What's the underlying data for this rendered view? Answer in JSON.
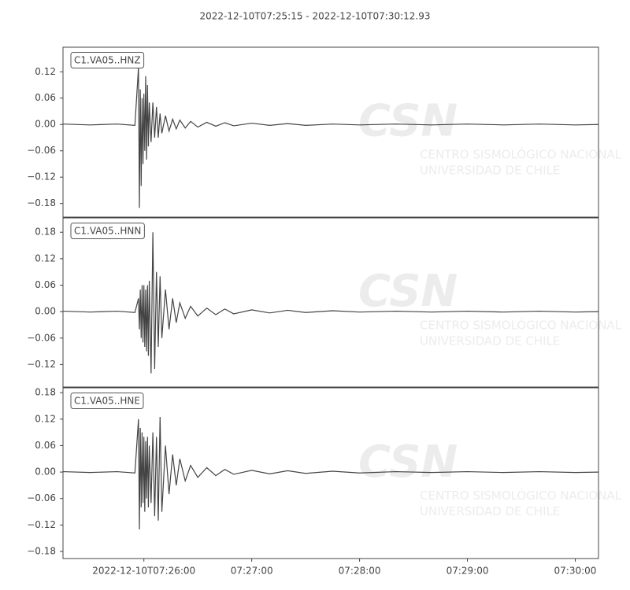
{
  "title": "2022-12-10T07:25:15  -  2022-12-10T07:30:12.93",
  "watermark": {
    "logo": "CSN",
    "lines": [
      "CENTRO SISMOLÓGICO NACIONAL",
      "UNIVERSIDAD DE CHILE"
    ]
  },
  "chart_data": [
    {
      "type": "line",
      "label": "C1.VA05..HNZ",
      "color": "#444444",
      "xlim": [
        "07:25:15",
        "07:30:12.93"
      ],
      "ylim": [
        -0.211,
        0.176
      ],
      "yticks": [
        {
          "value": 0.12,
          "label": "0.12"
        },
        {
          "value": 0.06,
          "label": "0.06"
        },
        {
          "value": 0,
          "label": "0.00"
        },
        {
          "value": -0.06,
          "label": "−0.06"
        },
        {
          "value": -0.12,
          "label": "−0.12"
        },
        {
          "value": -0.18,
          "label": "−0.18"
        }
      ],
      "x": [
        "07:25:15",
        "07:25:30",
        "07:25:45",
        "07:25:55",
        "07:25:57",
        "07:25:57.5",
        "07:25:58",
        "07:25:58.5",
        "07:25:59",
        "07:25:59.5",
        "07:26:00",
        "07:26:00.5",
        "07:26:01",
        "07:26:01.5",
        "07:26:02",
        "07:26:02.5",
        "07:26:03",
        "07:26:04",
        "07:26:05",
        "07:26:06",
        "07:26:07",
        "07:26:08",
        "07:26:09",
        "07:26:10",
        "07:26:12",
        "07:26:14",
        "07:26:16",
        "07:26:18",
        "07:26:20",
        "07:26:23",
        "07:26:26",
        "07:26:30",
        "07:26:35",
        "07:26:40",
        "07:26:45",
        "07:26:50",
        "07:27:00",
        "07:27:10",
        "07:27:20",
        "07:27:30",
        "07:27:45",
        "07:28:00",
        "07:28:20",
        "07:28:40",
        "07:29:00",
        "07:29:20",
        "07:29:40",
        "07:30:00",
        "07:30:12.9"
      ],
      "values": [
        0.001,
        -0.001,
        0.001,
        -0.002,
        0.13,
        -0.19,
        0.08,
        -0.14,
        0.06,
        -0.09,
        0.07,
        -0.06,
        0.11,
        -0.08,
        0.09,
        -0.05,
        0.05,
        -0.04,
        0.05,
        -0.03,
        0.04,
        -0.03,
        0.025,
        -0.02,
        0.02,
        -0.015,
        0.012,
        -0.01,
        0.01,
        -0.008,
        0.007,
        -0.006,
        0.005,
        -0.004,
        0.004,
        -0.003,
        0.003,
        -0.002,
        0.002,
        -0.002,
        0.001,
        -0.001,
        0.001,
        -0.001,
        0.001,
        -0.001,
        0.001,
        -0.001,
        0
      ]
    },
    {
      "type": "line",
      "label": "C1.VA05..HNN",
      "color": "#444444",
      "xlim": [
        "07:25:15",
        "07:30:12.93"
      ],
      "ylim": [
        -0.171,
        0.2125
      ],
      "yticks": [
        {
          "value": 0.18,
          "label": "0.18"
        },
        {
          "value": 0.12,
          "label": "0.12"
        },
        {
          "value": 0.06,
          "label": "0.06"
        },
        {
          "value": 0,
          "label": "0.00"
        },
        {
          "value": -0.06,
          "label": "−0.06"
        },
        {
          "value": -0.12,
          "label": "−0.12"
        }
      ],
      "x": [
        "07:25:15",
        "07:25:30",
        "07:25:45",
        "07:25:55",
        "07:25:57",
        "07:25:57.5",
        "07:25:58",
        "07:25:58.5",
        "07:25:59",
        "07:25:59.5",
        "07:26:00",
        "07:26:00.5",
        "07:26:01",
        "07:26:01.5",
        "07:26:02",
        "07:26:02.5",
        "07:26:03",
        "07:26:04",
        "07:26:05",
        "07:26:06",
        "07:26:07",
        "07:26:08",
        "07:26:09",
        "07:26:10",
        "07:26:12",
        "07:26:14",
        "07:26:16",
        "07:26:18",
        "07:26:20",
        "07:26:23",
        "07:26:26",
        "07:26:30",
        "07:26:35",
        "07:26:40",
        "07:26:45",
        "07:26:50",
        "07:27:00",
        "07:27:10",
        "07:27:20",
        "07:27:30",
        "07:27:45",
        "07:28:00",
        "07:28:20",
        "07:28:40",
        "07:29:00",
        "07:29:20",
        "07:29:40",
        "07:30:00",
        "07:30:12.9"
      ],
      "values": [
        0.001,
        -0.001,
        0.001,
        -0.002,
        0.03,
        -0.04,
        0.05,
        -0.06,
        0.06,
        -0.07,
        0.06,
        -0.08,
        0.05,
        -0.09,
        0.06,
        -0.1,
        0.07,
        -0.14,
        0.18,
        -0.13,
        0.09,
        -0.08,
        0.08,
        -0.06,
        0.05,
        -0.04,
        0.03,
        -0.025,
        0.02,
        -0.015,
        0.012,
        -0.01,
        0.008,
        -0.007,
        0.006,
        -0.005,
        0.004,
        -0.003,
        0.003,
        -0.002,
        0.002,
        -0.001,
        0.001,
        -0.001,
        0.001,
        -0.001,
        0.001,
        -0.001,
        0
      ]
    },
    {
      "type": "line",
      "label": "C1.VA05..HNE",
      "color": "#444444",
      "xlim": [
        "07:25:15",
        "07:30:12.93"
      ],
      "ylim": [
        -0.196,
        0.191
      ],
      "xticks": [
        {
          "value": "07:26:00",
          "label": "2022-12-10T07:26:00"
        },
        "07:27:00",
        "07:28:00",
        "07:29:00",
        "07:30:00"
      ],
      "yticks": [
        {
          "value": 0.18,
          "label": "0.18"
        },
        {
          "value": 0.12,
          "label": "0.12"
        },
        {
          "value": 0.06,
          "label": "0.06"
        },
        {
          "value": 0,
          "label": "0.00"
        },
        {
          "value": -0.06,
          "label": "−0.06"
        },
        {
          "value": -0.12,
          "label": "−0.12"
        },
        {
          "value": -0.18,
          "label": "−0.18"
        }
      ],
      "x": [
        "07:25:15",
        "07:25:30",
        "07:25:45",
        "07:25:55",
        "07:25:57",
        "07:25:57.5",
        "07:25:58",
        "07:25:58.5",
        "07:25:59",
        "07:25:59.5",
        "07:26:00",
        "07:26:00.5",
        "07:26:01",
        "07:26:01.5",
        "07:26:02",
        "07:26:02.5",
        "07:26:03",
        "07:26:04",
        "07:26:05",
        "07:26:06",
        "07:26:07",
        "07:26:08",
        "07:26:09",
        "07:26:10",
        "07:26:12",
        "07:26:14",
        "07:26:16",
        "07:26:18",
        "07:26:20",
        "07:26:23",
        "07:26:26",
        "07:26:30",
        "07:26:35",
        "07:26:40",
        "07:26:45",
        "07:26:50",
        "07:27:00",
        "07:27:10",
        "07:27:20",
        "07:27:30",
        "07:27:45",
        "07:28:00",
        "07:28:20",
        "07:28:40",
        "07:29:00",
        "07:29:20",
        "07:29:40",
        "07:30:00",
        "07:30:12.9"
      ],
      "values": [
        0.001,
        -0.001,
        0.001,
        -0.002,
        0.12,
        -0.13,
        0.1,
        -0.08,
        0.09,
        -0.07,
        0.08,
        -0.09,
        0.07,
        -0.06,
        0.08,
        -0.08,
        0.06,
        -0.07,
        0.09,
        -0.1,
        0.08,
        -0.11,
        0.125,
        -0.09,
        0.06,
        -0.05,
        0.04,
        -0.03,
        0.03,
        -0.02,
        0.015,
        -0.012,
        0.01,
        -0.008,
        0.006,
        -0.005,
        0.004,
        -0.004,
        0.003,
        -0.003,
        0.002,
        -0.002,
        0.001,
        -0.001,
        0.001,
        -0.001,
        0.001,
        -0.001,
        0
      ]
    }
  ]
}
